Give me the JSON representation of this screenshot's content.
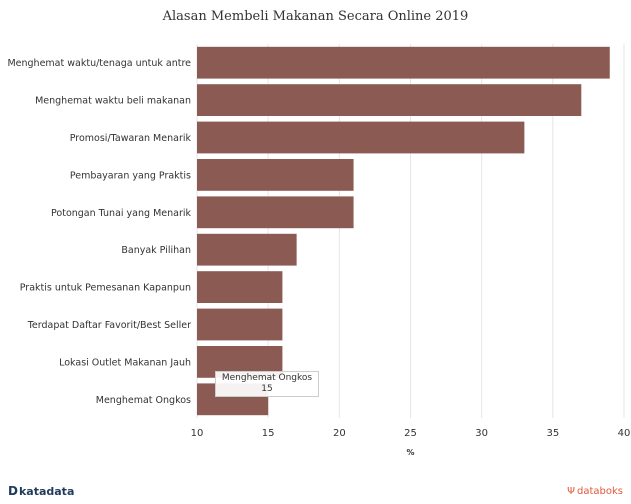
{
  "chart_data": {
    "type": "bar",
    "orientation": "horizontal",
    "title": "Alasan Membeli Makanan Secara Online 2019",
    "xlabel": "%",
    "xlim": [
      10,
      40
    ],
    "xticks": [
      10,
      15,
      20,
      25,
      30,
      35,
      40
    ],
    "grid": true,
    "bar_color": "#8b5a52",
    "categories": [
      "Menghemat waktu/tenaga untuk antre",
      "Menghemat waktu beli makanan",
      "Promosi/Tawaran Menarik",
      "Pembayaran yang Praktis",
      "Potongan Tunai yang Menarik",
      "Banyak Pilihan",
      "Praktis untuk Pemesanan Kapanpun",
      "Terdapat Daftar Favorit/Best Seller",
      "Lokasi Outlet Makanan Jauh",
      "Menghemat Ongkos"
    ],
    "values": [
      39,
      37,
      33,
      21,
      21,
      17,
      16,
      16,
      16,
      15
    ],
    "tooltip": {
      "category": "Menghemat Ongkos",
      "value": "15"
    }
  },
  "footer": {
    "left_logo": "katadata",
    "right_logo": "databoks"
  }
}
